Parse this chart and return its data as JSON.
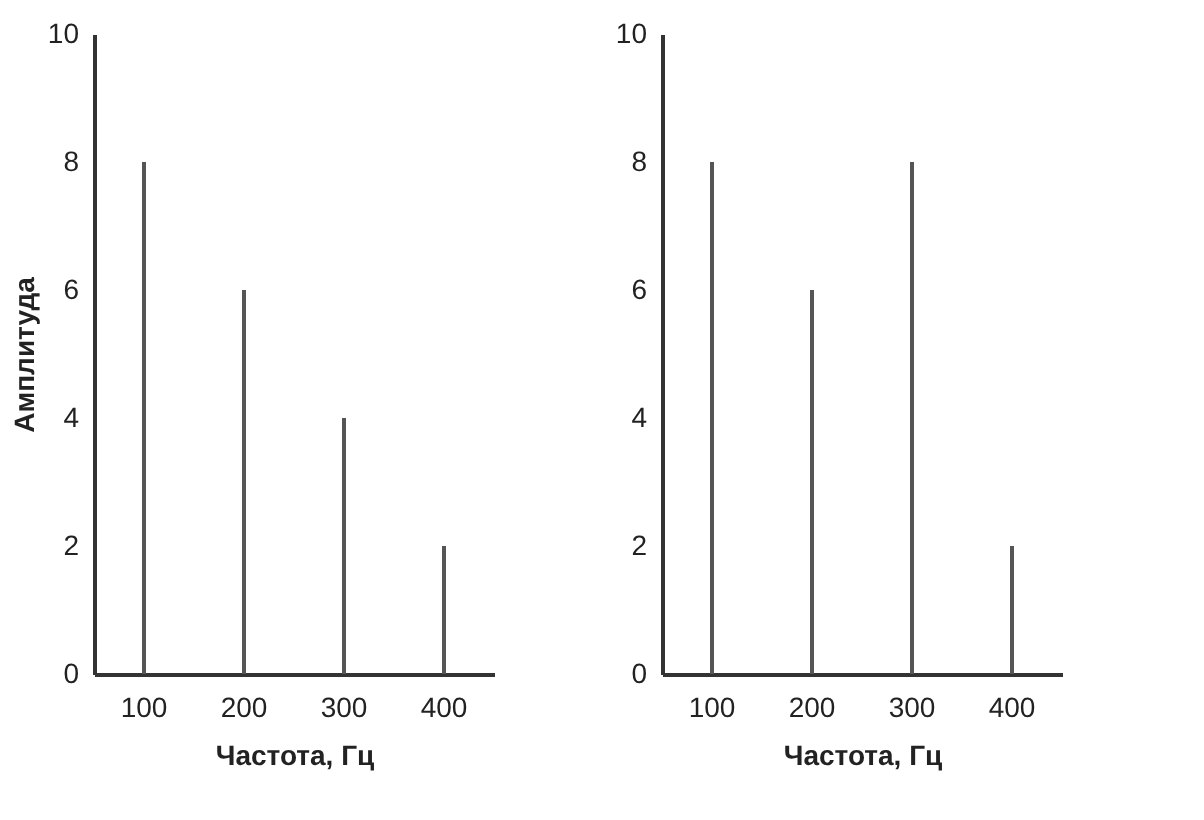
{
  "chart_data": [
    {
      "type": "bar",
      "xlabel": "Частота, Гц",
      "ylabel": "Амплитуда",
      "categories": [
        "100",
        "200",
        "300",
        "400"
      ],
      "values": [
        8,
        6,
        4,
        2
      ],
      "color": "#555555",
      "ylim": [
        0,
        10
      ],
      "yticks": [
        0,
        2,
        4,
        6,
        8,
        10
      ],
      "grid": false
    },
    {
      "type": "bar",
      "xlabel": "Частота, Гц",
      "categories": [
        "100",
        "200",
        "300",
        "400"
      ],
      "values": [
        8,
        6,
        8,
        2
      ],
      "color": "#555555",
      "ylim": [
        0,
        10
      ],
      "yticks": [
        0,
        2,
        4,
        6,
        8,
        10
      ],
      "grid": false
    }
  ]
}
